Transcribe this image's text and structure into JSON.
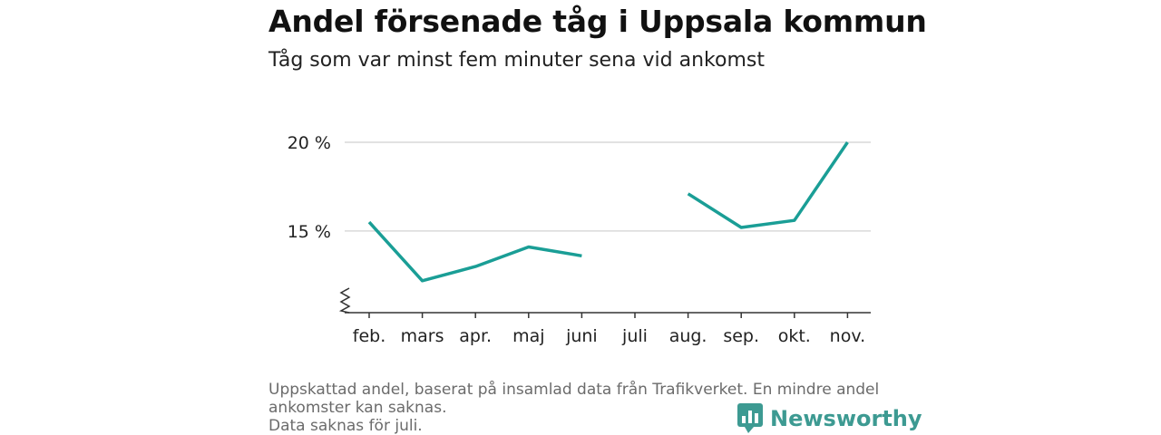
{
  "header": {
    "title": "Andel försenade tåg i Uppsala kommun",
    "subtitle": "Tåg som var minst fem minuter sena vid ankomst"
  },
  "footer": {
    "note_line1": "Uppskattad andel, baserat på insamlad data från Trafikverket. En mindre andel",
    "note_line2": "ankomster kan saknas.",
    "note_line3": "Data saknas för juli."
  },
  "brand": {
    "name": "Newsworthy",
    "color": "#3d9a92"
  },
  "colors": {
    "line": "#1a9e96",
    "grid": "#d9d9d9",
    "axis": "#333333"
  },
  "chart_data": {
    "type": "line",
    "categories": [
      "feb.",
      "mars",
      "apr.",
      "maj",
      "juni",
      "juli",
      "aug.",
      "sep.",
      "okt.",
      "nov."
    ],
    "series": [
      {
        "values": [
          15.5,
          12.2,
          13.0,
          14.1,
          13.6,
          null,
          17.1,
          15.2,
          15.6,
          20.0
        ]
      }
    ],
    "yticks": [
      15,
      20
    ],
    "ytick_labels": [
      "15 %",
      "20 %"
    ],
    "ylim": [
      10.4,
      20
    ],
    "axis_break": true,
    "grid": true,
    "xlabel": "",
    "ylabel": ""
  }
}
